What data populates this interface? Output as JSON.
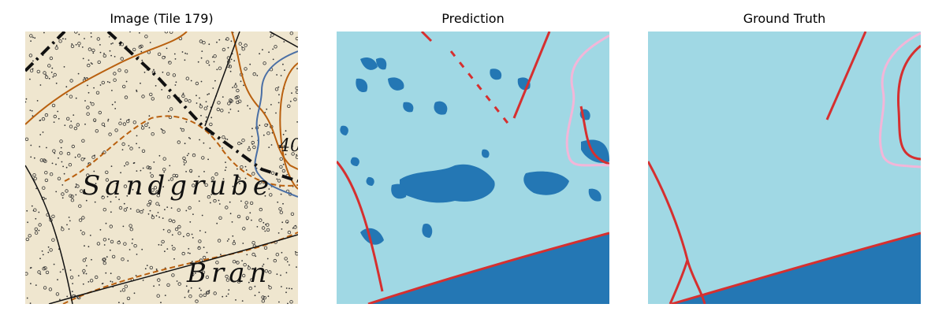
{
  "panels": [
    {
      "title": "Image (Tile 179)",
      "map_labels": [
        "Sandgrube",
        "Bran",
        "40"
      ]
    },
    {
      "title": "Prediction"
    },
    {
      "title": "Ground Truth"
    }
  ],
  "legend_colors": {
    "background": "#a0d8e4",
    "dark_class": "#2477b4",
    "road": "#d62f2f",
    "path_pink": "#f2b6d8",
    "map_paper": "#efe6cf",
    "contour": "#b9600f",
    "water": "#4a6fa5"
  }
}
